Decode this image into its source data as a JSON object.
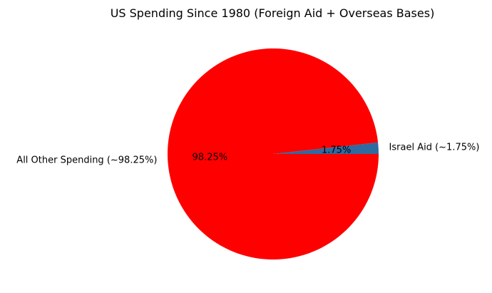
{
  "chart_data": {
    "type": "pie",
    "title": "US Spending Since 1980 (Foreign Aid + Overseas Bases)",
    "start_angle_deg": 0,
    "direction": "counterclockwise",
    "slices": [
      {
        "label": "Israel Aid (~1.75%)",
        "value": 1.75,
        "pct_label": "1.75%",
        "color": "#2f6aa0"
      },
      {
        "label": "All Other Spending (~98.25%)",
        "value": 98.25,
        "pct_label": "98.25%",
        "color": "#ff0000"
      }
    ]
  }
}
